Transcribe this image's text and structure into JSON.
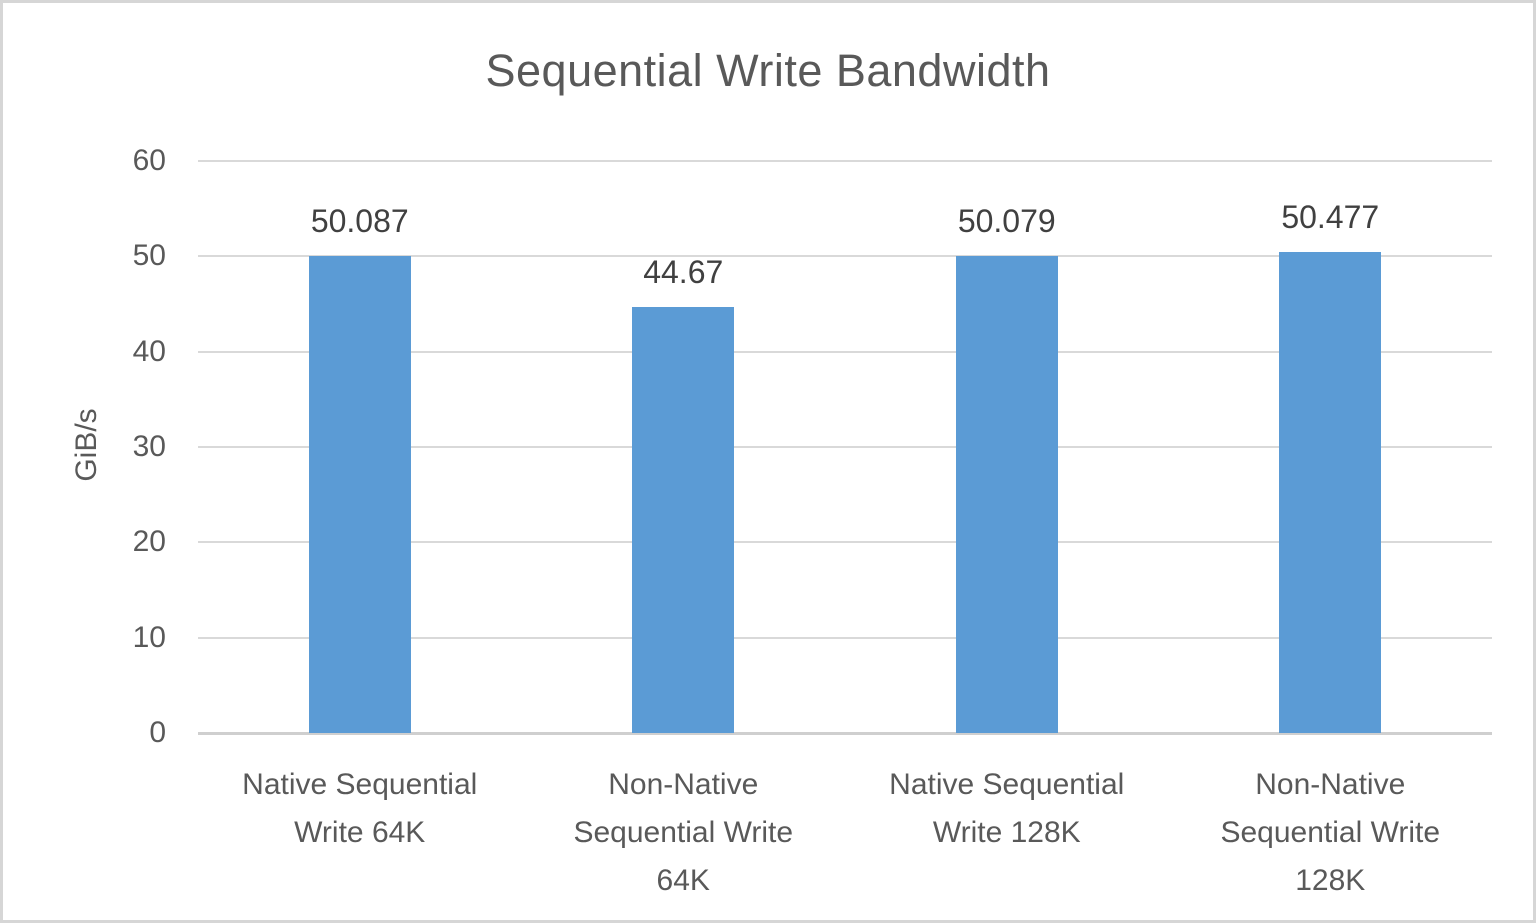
{
  "chart": {
    "title": "Sequential Write Bandwidth",
    "y_axis_title": "GiB/s"
  },
  "chart_data": {
    "type": "bar",
    "title": "Sequential Write Bandwidth",
    "xlabel": "",
    "ylabel": "GiB/s",
    "categories": [
      "Native Sequential Write 64K",
      "Non-Native Sequential Write 64K",
      "Native Sequential Write 128K",
      "Non-Native Sequential Write 128K"
    ],
    "values": [
      50.087,
      44.67,
      50.079,
      50.477
    ],
    "value_labels": [
      "50.087",
      "44.67",
      "50.079",
      "50.477"
    ],
    "ylim": [
      0,
      60
    ],
    "yticks": [
      0,
      10,
      20,
      30,
      40,
      50,
      60
    ],
    "grid": "horizontal",
    "legend_position": "none",
    "bar_color": "#5b9bd5",
    "gridline_color": "#d9d9d9",
    "text_color": "#595959",
    "value_label_color": "#404040"
  }
}
